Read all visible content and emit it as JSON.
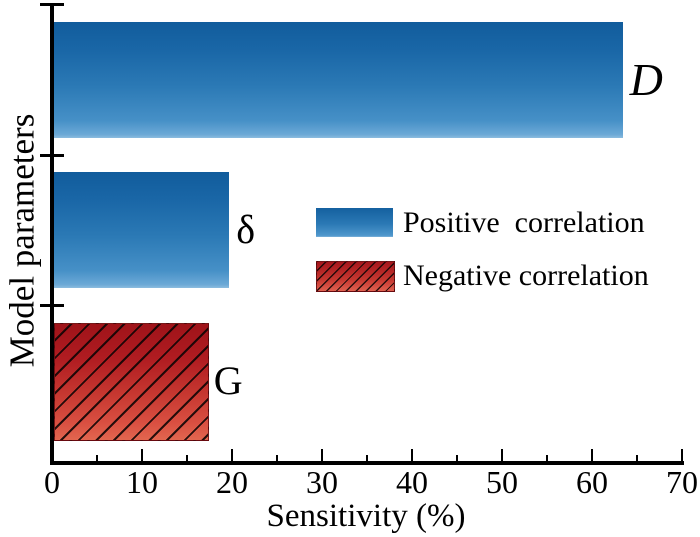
{
  "chart_data": {
    "type": "bar",
    "orientation": "horizontal",
    "title": "",
    "xlabel": "Sensitivity (%)",
    "ylabel": "Model parameters",
    "xlim": [
      0,
      70
    ],
    "xticks": [
      0,
      10,
      20,
      30,
      40,
      50,
      60,
      70
    ],
    "minor_tick_step": 5,
    "grid": false,
    "categories": [
      "D",
      "δ",
      "G"
    ],
    "category_label_styles": [
      "italic",
      "normal",
      "normal"
    ],
    "values": [
      63.4,
      19.7,
      17.2
    ],
    "correlation": [
      "positive",
      "positive",
      "negative"
    ],
    "legend": {
      "position": "middle-right",
      "entries": [
        {
          "label": "Positive  correlation",
          "pattern": "solid",
          "color": "#2b79b5"
        },
        {
          "label": "Negative correlation",
          "pattern": "hatched",
          "color": "#c13a30"
        }
      ]
    },
    "colors": {
      "positive_gradient_top": "#115c9c",
      "positive_gradient_bottom": "#8cbcdf",
      "negative_gradient_top": "#9f1319",
      "negative_gradient_bottom": "#e2664f",
      "hatch_color": "#0c0404",
      "axis_color": "#000000"
    }
  }
}
